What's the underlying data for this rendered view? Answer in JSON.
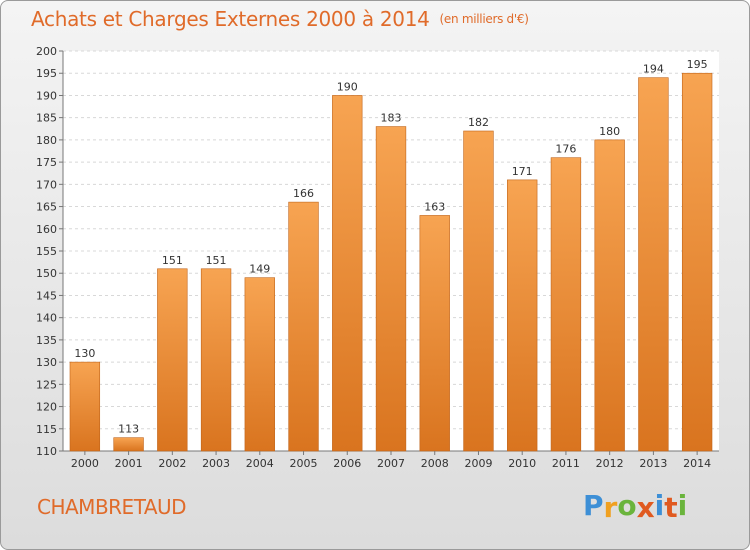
{
  "header": {
    "title": "Achats et Charges Externes 2000 à 2014",
    "subtitle": "(en milliers d'€)"
  },
  "footer": {
    "town": "CHAMBRETAUD",
    "logo_letters": [
      {
        "ch": "P",
        "color": "#3d8fd6"
      },
      {
        "ch": "r",
        "color": "#f0a020"
      },
      {
        "ch": "o",
        "color": "#6ab43c"
      },
      {
        "ch": "x",
        "color": "#e05a20"
      },
      {
        "ch": "i",
        "color": "#3d8fd6"
      },
      {
        "ch": "t",
        "color": "#e05a20"
      },
      {
        "ch": "i",
        "color": "#6ab43c"
      }
    ]
  },
  "colors": {
    "bar_top": "#f7a452",
    "bar_bottom": "#d9741f",
    "bar_stroke": "#c0641a",
    "accent": "#e06b2a"
  },
  "chart_data": {
    "type": "bar",
    "categories": [
      "2000",
      "2001",
      "2002",
      "2003",
      "2004",
      "2005",
      "2006",
      "2007",
      "2008",
      "2009",
      "2010",
      "2011",
      "2012",
      "2013",
      "2014"
    ],
    "values": [
      130,
      113,
      151,
      151,
      149,
      166,
      190,
      183,
      163,
      182,
      171,
      176,
      180,
      194,
      195
    ],
    "title": "Achats et Charges Externes 2000 à 2014",
    "subtitle": "(en milliers d'€)",
    "ylim": [
      110,
      200
    ],
    "yticks": [
      110,
      115,
      120,
      125,
      130,
      135,
      140,
      145,
      150,
      155,
      160,
      165,
      170,
      175,
      180,
      185,
      190,
      195,
      200
    ],
    "grid": true
  }
}
